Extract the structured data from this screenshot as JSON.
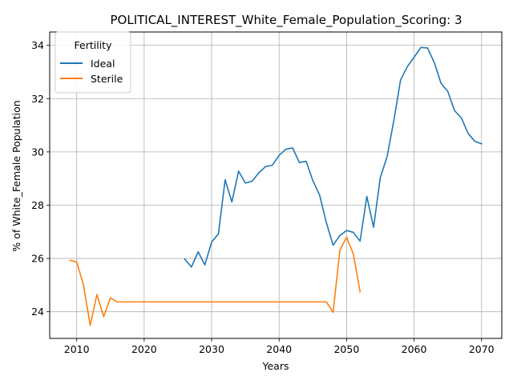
{
  "chart_data": {
    "type": "line",
    "title": "POLITICAL_INTEREST_White_Female_Population_Scoring: 3",
    "xlabel": "Years",
    "ylabel": "% of White_Female Population",
    "xlim": [
      2006,
      2073
    ],
    "ylim": [
      23.0,
      34.5
    ],
    "xticks": [
      2010,
      2020,
      2030,
      2040,
      2050,
      2060,
      2070
    ],
    "yticks": [
      24,
      26,
      28,
      30,
      32,
      34
    ],
    "grid": true,
    "legend": {
      "title": "Fertility",
      "position": "top-left"
    },
    "series": [
      {
        "name": "Ideal",
        "color": "#1f77b4",
        "x": [
          2026,
          2027,
          2028,
          2029,
          2030,
          2031,
          2032,
          2033,
          2034,
          2035,
          2036,
          2037,
          2038,
          2039,
          2040,
          2041,
          2042,
          2043,
          2044,
          2045,
          2046,
          2047,
          2048,
          2049,
          2050,
          2051,
          2052,
          2053,
          2054,
          2055,
          2056,
          2057,
          2058,
          2059,
          2060,
          2061,
          2062,
          2063,
          2064,
          2065,
          2066,
          2067,
          2068,
          2069,
          2070
        ],
        "y": [
          25.98,
          25.68,
          26.25,
          25.76,
          26.62,
          26.92,
          28.95,
          28.12,
          29.28,
          28.83,
          28.9,
          29.22,
          29.45,
          29.5,
          29.87,
          30.1,
          30.15,
          29.6,
          29.65,
          28.92,
          28.38,
          27.35,
          26.5,
          26.86,
          27.05,
          26.98,
          26.65,
          28.33,
          27.17,
          29.04,
          29.82,
          31.17,
          32.7,
          33.2,
          33.55,
          33.92,
          33.9,
          33.35,
          32.57,
          32.27,
          31.55,
          31.28,
          30.7,
          30.4,
          30.3
        ]
      },
      {
        "name": "Sterile",
        "color": "#ff7f0e",
        "x": [
          2009,
          2010,
          2011,
          2012,
          2013,
          2014,
          2015,
          2016,
          2017,
          2018,
          2019,
          2020,
          2021,
          2022,
          2023,
          2024,
          2025,
          2026,
          2027,
          2028,
          2029,
          2030,
          2031,
          2032,
          2033,
          2034,
          2035,
          2036,
          2037,
          2038,
          2039,
          2040,
          2041,
          2042,
          2043,
          2044,
          2045,
          2046,
          2047,
          2048,
          2049,
          2050,
          2051,
          2052
        ],
        "y": [
          25.93,
          25.87,
          25.02,
          23.49,
          24.65,
          23.82,
          24.52,
          24.37,
          24.37,
          24.37,
          24.37,
          24.37,
          24.37,
          24.37,
          24.37,
          24.37,
          24.37,
          24.37,
          24.37,
          24.37,
          24.37,
          24.37,
          24.37,
          24.37,
          24.37,
          24.37,
          24.37,
          24.37,
          24.37,
          24.37,
          24.37,
          24.37,
          24.37,
          24.37,
          24.37,
          24.37,
          24.37,
          24.37,
          24.37,
          23.98,
          26.3,
          26.8,
          26.17,
          24.75
        ]
      }
    ]
  }
}
